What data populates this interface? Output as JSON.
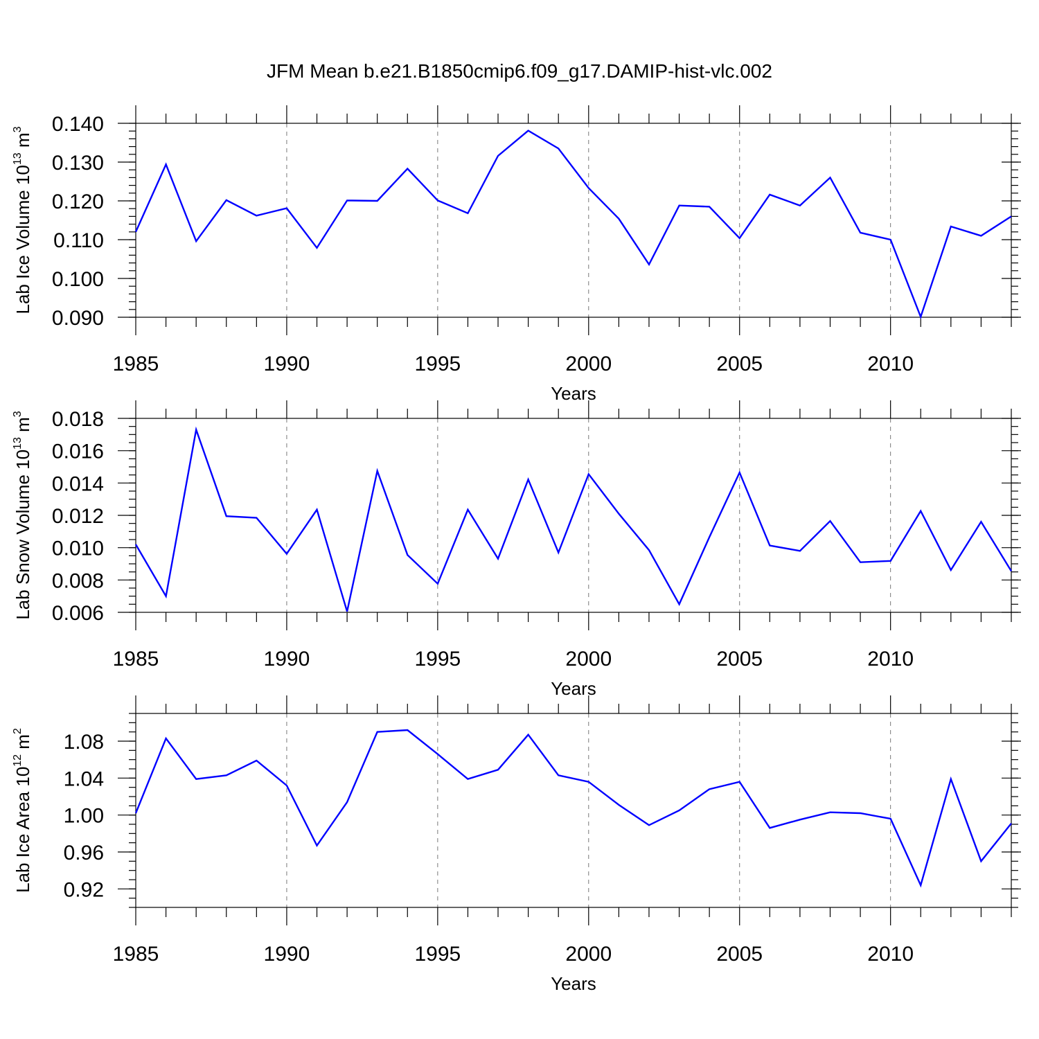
{
  "figure_title": "JFM Mean b.e21.B1850cmip6.f09_g17.DAMIP-hist-vlc.002",
  "line_color": "#0000ff",
  "chart_data": [
    {
      "type": "line",
      "title": "",
      "xlabel": "Years",
      "ylabel": {
        "main": "Lab Ice Volume 10",
        "exp": "13",
        "unit": " m",
        "unit_exp": "3"
      },
      "xlim": [
        1985,
        2014
      ],
      "ylim": [
        0.09,
        0.14
      ],
      "xticks": [
        1985,
        1990,
        1995,
        2000,
        2005,
        2010
      ],
      "xtick_labels": [
        "1985",
        "1990",
        "1995",
        "2000",
        "2005",
        "2010"
      ],
      "yticks": [
        0.09,
        0.1,
        0.11,
        0.12,
        0.13,
        0.14
      ],
      "ytick_labels": [
        "0.090",
        "0.100",
        "0.110",
        "0.120",
        "0.130",
        "0.140"
      ],
      "yminor_step": 0.002,
      "grid": "dashed vertical at major x ticks",
      "x": [
        1985,
        1986,
        1987,
        1988,
        1989,
        1990,
        1991,
        1992,
        1993,
        1994,
        1995,
        1996,
        1997,
        1998,
        1999,
        2000,
        2001,
        2002,
        2003,
        2004,
        2005,
        2006,
        2007,
        2008,
        2009,
        2010,
        2011,
        2012,
        2013,
        2014
      ],
      "values": [
        0.112,
        0.1294,
        0.1096,
        0.1202,
        0.1162,
        0.1181,
        0.1079,
        0.1201,
        0.12,
        0.1283,
        0.1201,
        0.1168,
        0.1316,
        0.1381,
        0.1335,
        0.1233,
        0.1154,
        0.1036,
        0.1188,
        0.1185,
        0.1104,
        0.1216,
        0.1188,
        0.126,
        0.1118,
        0.11,
        0.0901,
        0.1134,
        0.111,
        0.116
      ]
    },
    {
      "type": "line",
      "title": "",
      "xlabel": "Years",
      "ylabel": {
        "main": "Lab Snow Volume 10",
        "exp": "13",
        "unit": " m",
        "unit_exp": "3"
      },
      "xlim": [
        1985,
        2014
      ],
      "ylim": [
        0.006,
        0.018
      ],
      "xticks": [
        1985,
        1990,
        1995,
        2000,
        2005,
        2010
      ],
      "xtick_labels": [
        "1985",
        "1990",
        "1995",
        "2000",
        "2005",
        "2010"
      ],
      "yticks": [
        0.006,
        0.008,
        0.01,
        0.012,
        0.014,
        0.016,
        0.018
      ],
      "ytick_labels": [
        "0.006",
        "0.008",
        "0.010",
        "0.012",
        "0.014",
        "0.016",
        "0.018"
      ],
      "yminor_step": 0.0005,
      "grid": "dashed vertical at major x ticks",
      "x": [
        1985,
        1986,
        1987,
        1988,
        1989,
        1990,
        1991,
        1992,
        1993,
        1994,
        1995,
        1996,
        1997,
        1998,
        1999,
        2000,
        2001,
        2002,
        2003,
        2004,
        2005,
        2006,
        2007,
        2008,
        2009,
        2010,
        2011,
        2012,
        2013,
        2014
      ],
      "values": [
        0.0102,
        0.007,
        0.0173,
        0.01195,
        0.01185,
        0.00962,
        0.01235,
        0.00605,
        0.01475,
        0.00955,
        0.00777,
        0.01235,
        0.00932,
        0.01422,
        0.0097,
        0.01455,
        0.0121,
        0.00985,
        0.0065,
        0.01065,
        0.01465,
        0.01013,
        0.0098,
        0.01165,
        0.0091,
        0.00918,
        0.01227,
        0.00862,
        0.0116,
        0.00855
      ]
    },
    {
      "type": "line",
      "title": "",
      "xlabel": "Years",
      "ylabel": {
        "main": "Lab Ice Area 10",
        "exp": "12",
        "unit": " m",
        "unit_exp": "2"
      },
      "xlim": [
        1985,
        2014
      ],
      "ylim": [
        0.9,
        1.11
      ],
      "xticks": [
        1985,
        1990,
        1995,
        2000,
        2005,
        2010
      ],
      "xtick_labels": [
        "1985",
        "1990",
        "1995",
        "2000",
        "2005",
        "2010"
      ],
      "yticks": [
        0.92,
        0.96,
        1.0,
        1.04,
        1.08
      ],
      "ytick_labels": [
        "0.92",
        "0.96",
        "1.00",
        "1.04",
        "1.08"
      ],
      "yminor_step": 0.01,
      "grid": "dashed vertical at major x ticks",
      "x": [
        1985,
        1986,
        1987,
        1988,
        1989,
        1990,
        1991,
        1992,
        1993,
        1994,
        1995,
        1996,
        1997,
        1998,
        1999,
        2000,
        2001,
        2002,
        2003,
        2004,
        2005,
        2006,
        2007,
        2008,
        2009,
        2010,
        2011,
        2012,
        2013,
        2014
      ],
      "values": [
        1.002,
        1.083,
        1.039,
        1.043,
        1.059,
        1.032,
        0.967,
        1.014,
        1.09,
        1.092,
        1.066,
        1.039,
        1.049,
        1.087,
        1.043,
        1.036,
        1.011,
        0.989,
        1.005,
        1.028,
        1.036,
        0.986,
        0.995,
        1.003,
        1.002,
        0.996,
        0.924,
        1.039,
        0.95,
        0.991
      ]
    }
  ]
}
